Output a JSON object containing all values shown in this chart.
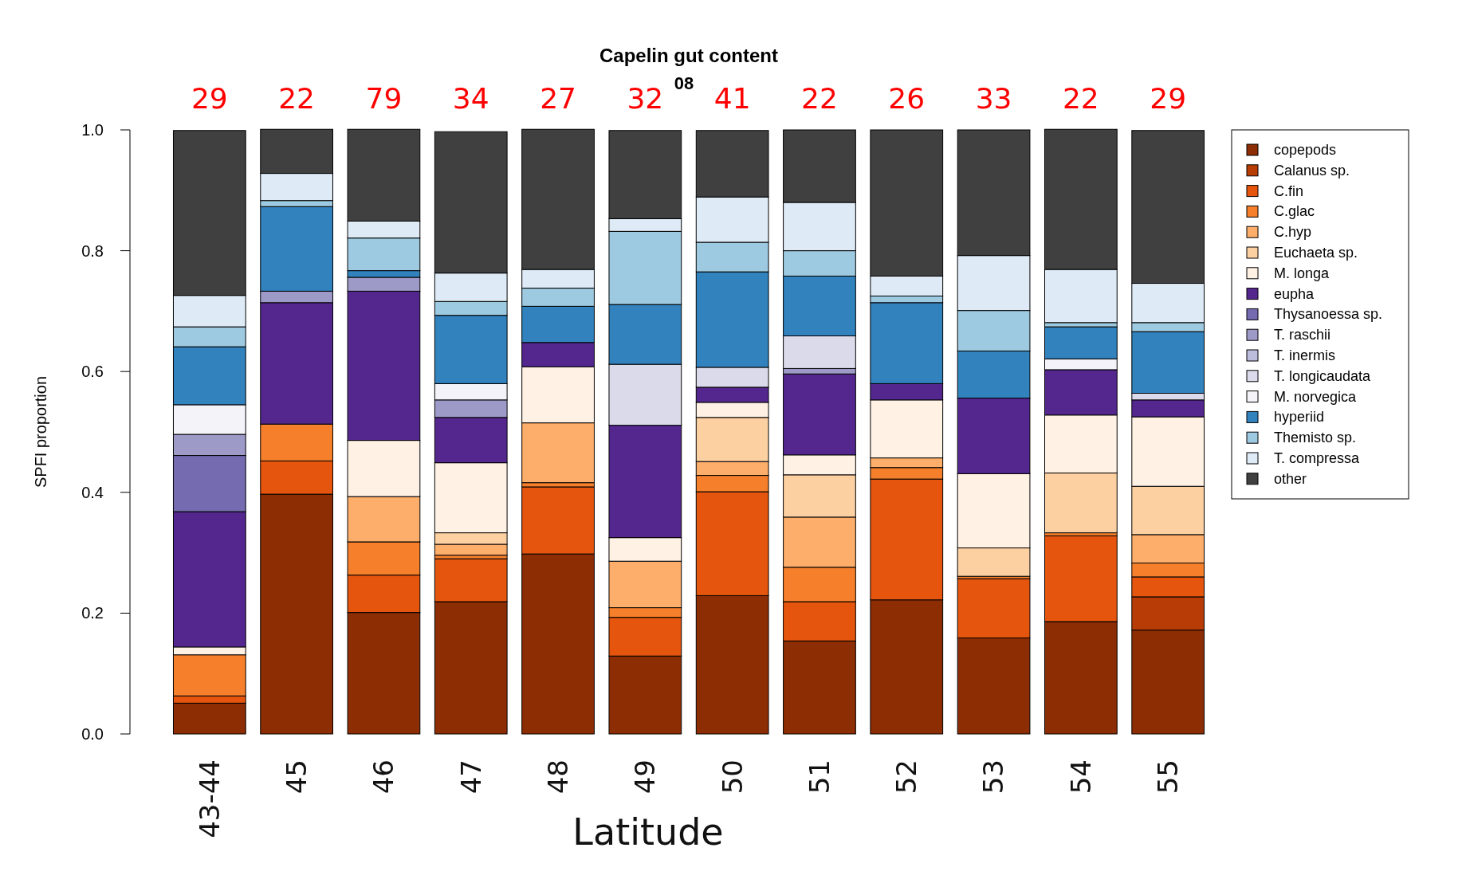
{
  "chart_data": {
    "type": "bar",
    "stacked": true,
    "title": "Capelin gut content",
    "subtitle": "08",
    "xlabel": "Latitude",
    "ylabel": "SPFI proportion",
    "categories": [
      "43-44",
      "45",
      "46",
      "47",
      "48",
      "49",
      "50",
      "51",
      "52",
      "53",
      "54",
      "55"
    ],
    "ylim": [
      0,
      1
    ],
    "yticks": [
      {
        "value": 0,
        "label": "0.0"
      },
      {
        "value": 0.2,
        "label": "0.2"
      },
      {
        "value": 0.4,
        "label": "0.4"
      },
      {
        "value": 0.6,
        "label": "0.6"
      },
      {
        "value": 0.8,
        "label": "0.8"
      },
      {
        "value": 1,
        "label": "1.0"
      }
    ],
    "legend": "right",
    "grid": false,
    "series": [
      {
        "name": "copepods",
        "color": "#8c2d04",
        "values": [
          0.051,
          0.397,
          0.201,
          0.219,
          0.298,
          0.129,
          0.229,
          0.154,
          0.222,
          0.159,
          0.186,
          0.172
        ]
      },
      {
        "name": "Calanus sp.",
        "color": "#b83c06",
        "values": [
          0,
          0,
          0,
          0,
          0,
          0,
          0,
          0,
          0,
          0,
          0,
          0.055
        ]
      },
      {
        "name": "C.fin",
        "color": "#e6550d",
        "values": [
          0.012,
          0.055,
          0.062,
          0.071,
          0.111,
          0.064,
          0.172,
          0.065,
          0.2,
          0.098,
          0.142,
          0.033
        ]
      },
      {
        "name": "C.glac",
        "color": "#f57f2b",
        "values": [
          0.068,
          0.061,
          0.055,
          0.006,
          0.007,
          0.016,
          0.027,
          0.057,
          0.019,
          0.004,
          0.005,
          0.023
        ]
      },
      {
        "name": "C.hyp",
        "color": "#fdae6b",
        "values": [
          0,
          0,
          0.075,
          0.018,
          0.099,
          0.077,
          0.023,
          0.083,
          0.016,
          0,
          0,
          0.047
        ]
      },
      {
        "name": "Euchaeta sp.",
        "color": "#fdd0a2",
        "values": [
          0,
          0,
          0,
          0.019,
          0,
          0,
          0.073,
          0.07,
          0,
          0.047,
          0.099,
          0.08
        ]
      },
      {
        "name": "M. longa",
        "color": "#fff1e4",
        "values": [
          0.013,
          0,
          0.093,
          0.116,
          0.093,
          0.039,
          0.025,
          0.033,
          0.096,
          0.123,
          0.096,
          0.115
        ]
      },
      {
        "name": "eupha",
        "color": "#54278f",
        "values": [
          0.224,
          0.201,
          0.247,
          0.075,
          0.04,
          0.186,
          0.025,
          0.134,
          0.027,
          0.125,
          0.075,
          0.028
        ]
      },
      {
        "name": "Thysanoessa sp.",
        "color": "#756bb1",
        "values": [
          0.093,
          0,
          0,
          0,
          0,
          0,
          0,
          0,
          0,
          0,
          0,
          0
        ]
      },
      {
        "name": "T. raschii",
        "color": "#9e9ac8",
        "values": [
          0.035,
          0.019,
          0.023,
          0.029,
          0,
          0,
          0,
          0.009,
          0,
          0,
          0,
          0
        ]
      },
      {
        "name": "T. inermis",
        "color": "#bcbddc",
        "values": [
          0,
          0,
          0,
          0,
          0,
          0,
          0,
          0,
          0,
          0,
          0,
          0
        ]
      },
      {
        "name": "T. longicaudata",
        "color": "#dadaeb",
        "values": [
          0,
          0,
          0,
          0,
          0,
          0.101,
          0.033,
          0.054,
          0,
          0,
          0,
          0.011
        ]
      },
      {
        "name": "M. norvegica",
        "color": "#f5f3fa",
        "values": [
          0.049,
          0,
          0,
          0.027,
          0,
          0,
          0,
          0,
          0,
          0,
          0.018,
          0
        ]
      },
      {
        "name": "hyperiid",
        "color": "#3182bd",
        "values": [
          0.096,
          0.14,
          0.011,
          0.113,
          0.06,
          0.099,
          0.158,
          0.099,
          0.134,
          0.078,
          0.053,
          0.102
        ]
      },
      {
        "name": "Themisto sp.",
        "color": "#9ecae1",
        "values": [
          0.033,
          0.01,
          0.054,
          0.023,
          0.03,
          0.121,
          0.049,
          0.042,
          0.011,
          0.067,
          0.007,
          0.015
        ]
      },
      {
        "name": "T. compressa",
        "color": "#deebf7",
        "values": [
          0.052,
          0.045,
          0.028,
          0.047,
          0.031,
          0.021,
          0.075,
          0.08,
          0.033,
          0.091,
          0.088,
          0.065
        ]
      },
      {
        "name": "other",
        "color": "#404040",
        "values": [
          0.273,
          0.073,
          0.152,
          0.234,
          0.232,
          0.146,
          0.11,
          0.12,
          0.242,
          0.208,
          0.232,
          0.253
        ]
      }
    ],
    "annotations": [
      "29",
      "22",
      "79",
      "34",
      "27",
      "32",
      "41",
      "22",
      "26",
      "33",
      "22",
      "29"
    ]
  }
}
